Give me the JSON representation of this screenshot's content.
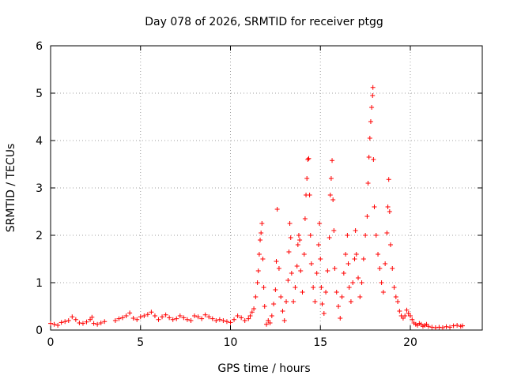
{
  "chart_data": {
    "type": "scatter",
    "title": "Day 078 of 2026, SRMTID for receiver ptgg",
    "xlabel": "GPS time / hours",
    "ylabel": "SRMTID / TECUs",
    "xlim": [
      0,
      24
    ],
    "ylim": [
      0,
      6
    ],
    "xticks": [
      0,
      5,
      10,
      15,
      20
    ],
    "yticks": [
      0,
      1,
      2,
      3,
      4,
      5,
      6
    ],
    "grid": true,
    "marker": "+",
    "color": "#ff0000",
    "series": [
      {
        "name": "SRMTID",
        "points": [
          [
            0.0,
            0.14
          ],
          [
            0.2,
            0.12
          ],
          [
            0.4,
            0.1
          ],
          [
            0.6,
            0.16
          ],
          [
            0.8,
            0.18
          ],
          [
            1.0,
            0.2
          ],
          [
            1.2,
            0.28
          ],
          [
            1.4,
            0.22
          ],
          [
            1.6,
            0.15
          ],
          [
            1.8,
            0.14
          ],
          [
            2.0,
            0.17
          ],
          [
            2.2,
            0.22
          ],
          [
            2.3,
            0.27
          ],
          [
            2.4,
            0.14
          ],
          [
            2.6,
            0.12
          ],
          [
            2.8,
            0.15
          ],
          [
            3.0,
            0.18
          ],
          [
            3.6,
            0.2
          ],
          [
            3.8,
            0.24
          ],
          [
            4.0,
            0.26
          ],
          [
            4.2,
            0.3
          ],
          [
            4.4,
            0.36
          ],
          [
            4.6,
            0.25
          ],
          [
            4.8,
            0.22
          ],
          [
            5.0,
            0.28
          ],
          [
            5.2,
            0.3
          ],
          [
            5.4,
            0.33
          ],
          [
            5.6,
            0.38
          ],
          [
            5.8,
            0.3
          ],
          [
            6.0,
            0.22
          ],
          [
            6.2,
            0.28
          ],
          [
            6.4,
            0.32
          ],
          [
            6.6,
            0.26
          ],
          [
            6.8,
            0.22
          ],
          [
            7.0,
            0.24
          ],
          [
            7.2,
            0.3
          ],
          [
            7.4,
            0.26
          ],
          [
            7.6,
            0.22
          ],
          [
            7.8,
            0.2
          ],
          [
            8.0,
            0.3
          ],
          [
            8.2,
            0.28
          ],
          [
            8.4,
            0.24
          ],
          [
            8.6,
            0.32
          ],
          [
            8.8,
            0.28
          ],
          [
            9.0,
            0.24
          ],
          [
            9.2,
            0.2
          ],
          [
            9.4,
            0.22
          ],
          [
            9.6,
            0.2
          ],
          [
            9.8,
            0.18
          ],
          [
            10.0,
            0.16
          ],
          [
            10.2,
            0.22
          ],
          [
            10.4,
            0.3
          ],
          [
            10.6,
            0.26
          ],
          [
            10.8,
            0.2
          ],
          [
            11.0,
            0.24
          ],
          [
            11.1,
            0.3
          ],
          [
            11.2,
            0.38
          ],
          [
            11.3,
            0.45
          ],
          [
            11.4,
            0.7
          ],
          [
            11.5,
            1.0
          ],
          [
            11.55,
            1.25
          ],
          [
            11.6,
            1.6
          ],
          [
            11.65,
            1.9
          ],
          [
            11.7,
            2.05
          ],
          [
            11.75,
            2.25
          ],
          [
            11.8,
            1.5
          ],
          [
            11.85,
            0.9
          ],
          [
            11.9,
            0.5
          ],
          [
            12.0,
            0.12
          ],
          [
            12.1,
            0.2
          ],
          [
            12.2,
            0.15
          ],
          [
            12.3,
            0.3
          ],
          [
            12.4,
            0.55
          ],
          [
            12.5,
            0.85
          ],
          [
            12.55,
            1.45
          ],
          [
            12.6,
            2.55
          ],
          [
            12.7,
            1.3
          ],
          [
            12.8,
            0.7
          ],
          [
            12.9,
            0.4
          ],
          [
            13.0,
            0.2
          ],
          [
            13.1,
            0.6
          ],
          [
            13.2,
            1.05
          ],
          [
            13.25,
            1.65
          ],
          [
            13.3,
            2.25
          ],
          [
            13.35,
            1.95
          ],
          [
            13.4,
            1.2
          ],
          [
            13.5,
            0.6
          ],
          [
            13.6,
            0.9
          ],
          [
            13.7,
            1.35
          ],
          [
            13.75,
            1.8
          ],
          [
            13.8,
            2.0
          ],
          [
            13.85,
            1.9
          ],
          [
            13.9,
            1.25
          ],
          [
            14.0,
            0.8
          ],
          [
            14.1,
            1.6
          ],
          [
            14.15,
            2.35
          ],
          [
            14.2,
            2.85
          ],
          [
            14.25,
            3.2
          ],
          [
            14.3,
            3.6
          ],
          [
            14.35,
            3.62
          ],
          [
            14.4,
            2.85
          ],
          [
            14.45,
            2.0
          ],
          [
            14.5,
            1.4
          ],
          [
            14.6,
            0.9
          ],
          [
            14.7,
            0.6
          ],
          [
            14.8,
            1.2
          ],
          [
            14.9,
            1.8
          ],
          [
            14.95,
            2.25
          ],
          [
            15.0,
            1.5
          ],
          [
            15.05,
            0.9
          ],
          [
            15.1,
            0.55
          ],
          [
            15.2,
            0.35
          ],
          [
            15.3,
            0.8
          ],
          [
            15.4,
            1.25
          ],
          [
            15.5,
            1.95
          ],
          [
            15.55,
            2.85
          ],
          [
            15.6,
            3.2
          ],
          [
            15.65,
            3.58
          ],
          [
            15.7,
            2.75
          ],
          [
            15.75,
            2.1
          ],
          [
            15.8,
            1.3
          ],
          [
            15.9,
            0.8
          ],
          [
            16.0,
            0.5
          ],
          [
            16.1,
            0.25
          ],
          [
            16.2,
            0.7
          ],
          [
            16.3,
            1.2
          ],
          [
            16.4,
            1.6
          ],
          [
            16.5,
            2.0
          ],
          [
            16.55,
            1.4
          ],
          [
            16.6,
            0.9
          ],
          [
            16.7,
            0.6
          ],
          [
            16.8,
            1.0
          ],
          [
            16.9,
            1.5
          ],
          [
            16.95,
            2.1
          ],
          [
            17.0,
            1.6
          ],
          [
            17.1,
            1.1
          ],
          [
            17.2,
            0.7
          ],
          [
            17.3,
            1.0
          ],
          [
            17.4,
            1.5
          ],
          [
            17.5,
            2.0
          ],
          [
            17.6,
            2.4
          ],
          [
            17.65,
            3.1
          ],
          [
            17.7,
            3.65
          ],
          [
            17.75,
            4.05
          ],
          [
            17.8,
            4.4
          ],
          [
            17.85,
            4.7
          ],
          [
            17.9,
            4.95
          ],
          [
            17.92,
            5.12
          ],
          [
            17.95,
            3.6
          ],
          [
            18.0,
            2.6
          ],
          [
            18.1,
            2.0
          ],
          [
            18.2,
            1.6
          ],
          [
            18.3,
            1.3
          ],
          [
            18.4,
            1.0
          ],
          [
            18.5,
            0.8
          ],
          [
            18.6,
            1.4
          ],
          [
            18.7,
            2.05
          ],
          [
            18.75,
            2.6
          ],
          [
            18.8,
            3.18
          ],
          [
            18.85,
            2.5
          ],
          [
            18.9,
            1.8
          ],
          [
            19.0,
            1.3
          ],
          [
            19.1,
            0.9
          ],
          [
            19.2,
            0.7
          ],
          [
            19.3,
            0.6
          ],
          [
            19.4,
            0.4
          ],
          [
            19.5,
            0.3
          ],
          [
            19.6,
            0.25
          ],
          [
            19.7,
            0.3
          ],
          [
            19.8,
            0.42
          ],
          [
            19.9,
            0.35
          ],
          [
            20.0,
            0.3
          ],
          [
            20.1,
            0.22
          ],
          [
            20.2,
            0.15
          ],
          [
            20.3,
            0.12
          ],
          [
            20.4,
            0.1
          ],
          [
            20.5,
            0.14
          ],
          [
            20.6,
            0.12
          ],
          [
            20.7,
            0.08
          ],
          [
            20.8,
            0.1
          ],
          [
            20.9,
            0.12
          ],
          [
            21.0,
            0.08
          ],
          [
            21.2,
            0.06
          ],
          [
            21.4,
            0.05
          ],
          [
            21.6,
            0.06
          ],
          [
            21.8,
            0.05
          ],
          [
            22.0,
            0.07
          ],
          [
            22.2,
            0.06
          ],
          [
            22.4,
            0.09
          ],
          [
            22.6,
            0.1
          ],
          [
            22.8,
            0.08
          ],
          [
            22.9,
            0.09
          ]
        ]
      }
    ]
  }
}
